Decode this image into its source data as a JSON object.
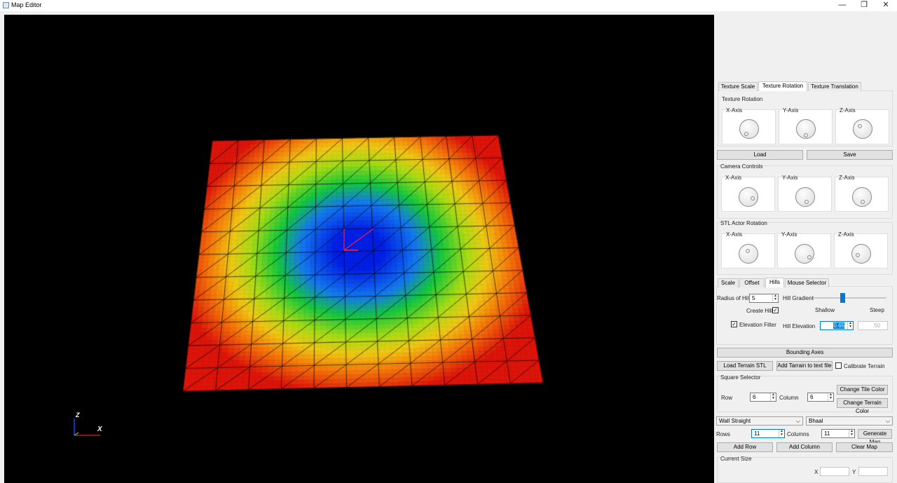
{
  "window": {
    "title": "Map Editor",
    "minimize": "—",
    "restore": "❐",
    "close": "✕"
  },
  "viewport": {
    "axis_x": "X",
    "axis_z": "Z"
  },
  "texture_tabs": [
    "Texture Scale",
    "Texture Rotation",
    "Texture Translation"
  ],
  "texture_rotation": {
    "title": "Texture Rotation",
    "x": "X-Axis",
    "y": "Y-Axis",
    "z": "Z-Axis"
  },
  "load_label": "Load",
  "save_label": "Save",
  "camera": {
    "title": "Camera Controls",
    "x": "X-Axis",
    "y": "Y-Axis",
    "z": "Z-Axis"
  },
  "stl": {
    "title": "STL Actor Rotation",
    "x": "X-Axis",
    "y": "Y-Axis",
    "z": "Z-Axis"
  },
  "hill_tabs": [
    "Scale",
    "Offset",
    "Hills",
    "Mouse Selector"
  ],
  "hills": {
    "radius_label": "Radius of Hill",
    "radius_value": "5",
    "gradient_label": "Hill Gradient",
    "gradient_level": 0.4,
    "create_label": "Create Hill",
    "shallow": "Shallow",
    "steep": "Steep",
    "filter_label": "Elevation Filter",
    "elevation_label": "Hill Elevation",
    "elevation_value": "0.65",
    "disabled_value": "50"
  },
  "bounding_axes": "Bounding Axes",
  "load_stl": "Load Terrain STL",
  "add_terrain": "Add Tarrain to text file",
  "calibrate": "Calibrate Terrain",
  "square": {
    "title": "Square Selector",
    "row_label": "Row",
    "row_value": "6",
    "col_label": "Column",
    "col_value": "6",
    "tile_color": "Change Tile Color",
    "terrain_color": "Change Terrain Color"
  },
  "combo1": "Wall Straight",
  "combo2": "Bhaal",
  "grid": {
    "rows_label": "Rows",
    "rows_value": "11",
    "cols_label": "Columns",
    "cols_value": "11",
    "generate": "Generate Map",
    "add_row": "Add Row",
    "add_col": "Add Column",
    "clear": "Clear Map"
  },
  "current_size": {
    "title": "Current Size",
    "x_label": "X",
    "y_label": "Y"
  },
  "colors": {
    "accent": "#0078d7"
  }
}
